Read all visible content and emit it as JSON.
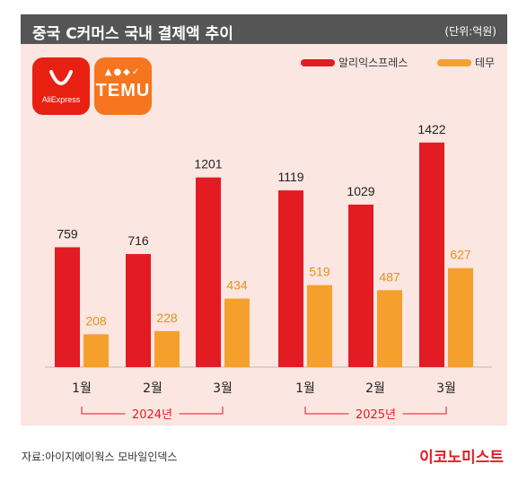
{
  "header": {
    "title": "중국 C커머스 국내 결제액 추이",
    "unit": "(단위:억원)"
  },
  "logos": {
    "aliexpress": {
      "text": "AliExpress",
      "icon": "shopping-bag-icon"
    },
    "temu": {
      "text": "TEMU",
      "icon": "temu-mascots-icon"
    }
  },
  "legend": [
    {
      "label": "알리익스프레스",
      "color": "#e31b23"
    },
    {
      "label": "테무",
      "color": "#f5a02c"
    }
  ],
  "chart_data": {
    "type": "bar",
    "categories": [
      "1월",
      "2월",
      "3월",
      "1월",
      "2월",
      "3월"
    ],
    "groups": [
      {
        "label": "2024년",
        "categories": [
          "1월",
          "2월",
          "3월"
        ]
      },
      {
        "label": "2025년",
        "categories": [
          "1월",
          "2월",
          "3월"
        ]
      }
    ],
    "series": [
      {
        "name": "알리익스프레스",
        "color": "#e31b23",
        "values": [
          759,
          716,
          1201,
          1119,
          1029,
          1422
        ]
      },
      {
        "name": "테무",
        "color": "#f5a02c",
        "values": [
          208,
          228,
          434,
          519,
          487,
          627
        ]
      }
    ],
    "title": "중국 C커머스 국내 결제액 추이",
    "ylabel": "(단위:억원)",
    "xlabel": "",
    "ylim": [
      0,
      1580
    ],
    "grid": false,
    "legend_position": "top-right"
  },
  "footer": {
    "source": "자료:아이지에이웍스 모바일인덱스",
    "brand": "이코노미스트"
  }
}
